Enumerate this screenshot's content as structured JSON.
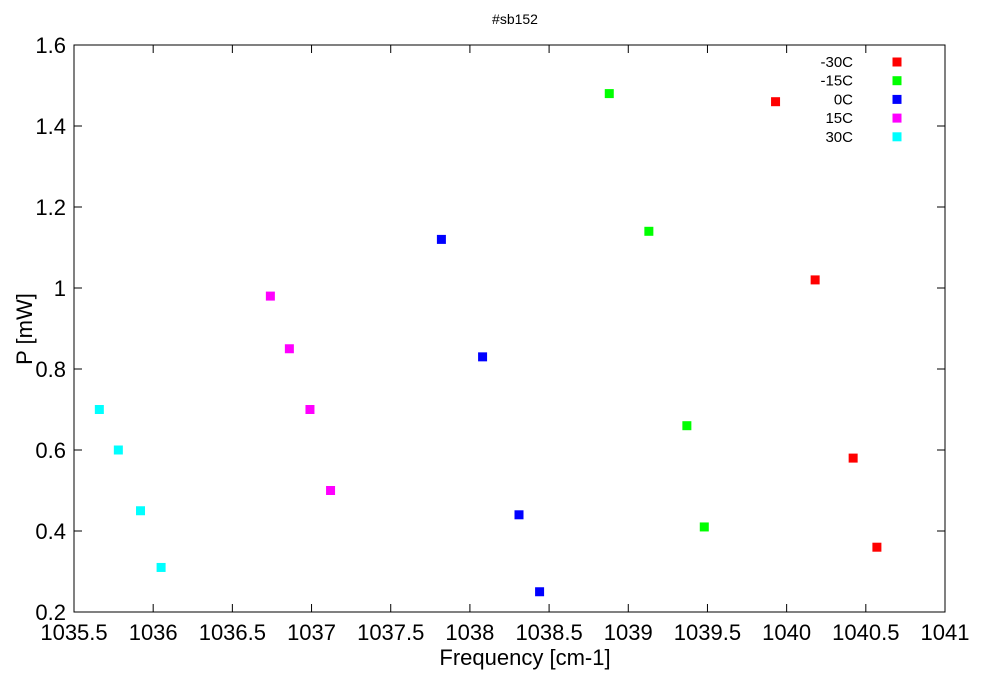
{
  "chart_data": {
    "type": "scatter",
    "title": "#sb152",
    "xlabel": "Frequency [cm-1]",
    "ylabel": "P [mW]",
    "xlim": [
      1035.5,
      1041
    ],
    "ylim": [
      0.2,
      1.6
    ],
    "xticks": [
      1035.5,
      1036,
      1036.5,
      1037,
      1037.5,
      1038,
      1038.5,
      1039,
      1039.5,
      1040,
      1040.5,
      1041
    ],
    "xtick_labels": [
      "1035.5",
      "1036",
      "1036.5",
      "1037",
      "1037.5",
      "1038",
      "1038.5",
      "1039",
      "1039.5",
      "1040",
      "1040.5",
      "1041"
    ],
    "yticks": [
      0.2,
      0.4,
      0.6,
      0.8,
      1.0,
      1.2,
      1.4,
      1.6
    ],
    "ytick_labels": [
      "0.2",
      "0.4",
      "0.6",
      "0.8",
      "1",
      "1.2",
      "1.4",
      "1.6"
    ],
    "grid": false,
    "legend_position": "top-right",
    "series": [
      {
        "name": "-30C",
        "color": "#ff0000",
        "x": [
          1039.93,
          1040.18,
          1040.42,
          1040.57
        ],
        "y": [
          1.46,
          1.02,
          0.58,
          0.36
        ]
      },
      {
        "name": "-15C",
        "color": "#00ff00",
        "x": [
          1038.88,
          1039.13,
          1039.37,
          1039.48
        ],
        "y": [
          1.48,
          1.14,
          0.66,
          0.41
        ]
      },
      {
        "name": "0C",
        "color": "#0000ff",
        "x": [
          1037.82,
          1038.08,
          1038.31,
          1038.44
        ],
        "y": [
          1.12,
          0.83,
          0.44,
          0.25
        ]
      },
      {
        "name": "15C",
        "color": "#ff00ff",
        "x": [
          1036.74,
          1036.86,
          1036.99,
          1037.12
        ],
        "y": [
          0.98,
          0.85,
          0.7,
          0.5
        ]
      },
      {
        "name": "30C",
        "color": "#00ffff",
        "x": [
          1035.66,
          1035.78,
          1035.92,
          1036.05
        ],
        "y": [
          0.7,
          0.6,
          0.45,
          0.31
        ]
      }
    ]
  }
}
